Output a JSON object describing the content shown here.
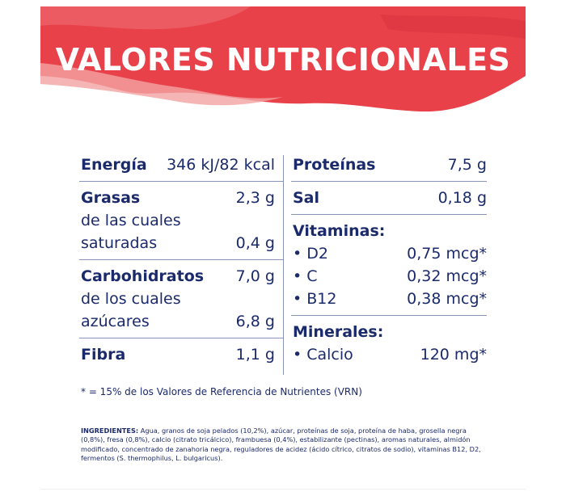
{
  "banner": {
    "title": "VALORES NUTRICIONALES"
  },
  "colors": {
    "banner_red": "#e8414a",
    "banner_pink": "#f2a3a3",
    "text_navy": "#1b2a6b",
    "divider": "#8a93b8"
  },
  "left": {
    "energia": {
      "label": "Energía",
      "value": "346 kJ/82 kcal"
    },
    "grasas": {
      "label": "Grasas",
      "value": "2,3 g",
      "sub1": "de las cuales",
      "sub2": "saturadas",
      "sub2_value": "0,4 g"
    },
    "carbohidratos": {
      "label": "Carbohidratos",
      "value": "7,0 g",
      "sub1": "de los cuales",
      "sub2": "azúcares",
      "sub2_value": "6,8 g"
    },
    "fibra": {
      "label": "Fibra",
      "value": "1,1 g"
    }
  },
  "right": {
    "proteinas": {
      "label": "Proteínas",
      "value": "7,5 g"
    },
    "sal": {
      "label": "Sal",
      "value": "0,18 g"
    },
    "vitaminas": {
      "label": "Vitaminas:",
      "items": [
        {
          "name": "• D2",
          "value": "0,75 mcg*"
        },
        {
          "name": "• C",
          "value": "0,32 mcg*"
        },
        {
          "name": "• B12",
          "value": "0,38 mcg*"
        }
      ]
    },
    "minerales": {
      "label": "Minerales:",
      "items": [
        {
          "name": "• Calcio",
          "value": "120 mg*"
        }
      ]
    }
  },
  "footnote": "* = 15% de los Valores de Referencia de Nutrientes (VRN)",
  "ingredients": {
    "label": "INGREDIENTES:",
    "text": "Agua, granos de soja pelados (10,2%), azúcar, proteínas de soja, proteína de haba, grosella negra (0,8%), fresa (0,8%), calcio (citrato tricálcico), frambuesa (0,4%), estabilizante (pectinas), aromas naturales, almidón modificado, concentrado de zanahoria negra, reguladores de acidez (ácido cítrico, citratos de sodio), vitaminas B12, D2, fermentos (S. thermophilus, L. bulgaricus)."
  }
}
